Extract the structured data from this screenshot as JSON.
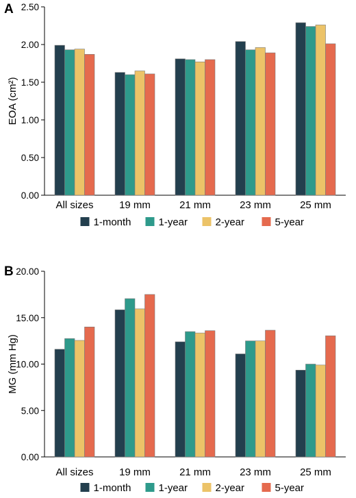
{
  "chart_data": [
    {
      "type": "bar",
      "panel": "A",
      "ylabel": "EOA (cm²)",
      "ylim": [
        0,
        2.5
      ],
      "yticks": [
        "0.00",
        "0.50",
        "1.00",
        "1.50",
        "2.00",
        "2.50"
      ],
      "categories": [
        "All sizes",
        "19 mm",
        "21 mm",
        "23 mm",
        "25 mm"
      ],
      "series": [
        {
          "name": "1-month",
          "values": [
            1.99,
            1.63,
            1.81,
            2.04,
            2.29
          ]
        },
        {
          "name": "1-year",
          "values": [
            1.93,
            1.6,
            1.8,
            1.93,
            2.24
          ]
        },
        {
          "name": "2-year",
          "values": [
            1.94,
            1.65,
            1.77,
            1.96,
            2.26
          ]
        },
        {
          "name": "5-year",
          "values": [
            1.87,
            1.61,
            1.8,
            1.89,
            2.01
          ]
        }
      ],
      "legend_position": "bottom"
    },
    {
      "type": "bar",
      "panel": "B",
      "ylabel": "MG (mm Hg)",
      "ylim": [
        0,
        20
      ],
      "yticks": [
        "0.00",
        "5.00",
        "10.00",
        "15.00",
        "20.00"
      ],
      "categories": [
        "All sizes",
        "19 mm",
        "21 mm",
        "23 mm",
        "25 mm"
      ],
      "series": [
        {
          "name": "1-month",
          "values": [
            11.6,
            15.85,
            12.4,
            11.1,
            9.35
          ]
        },
        {
          "name": "1-year",
          "values": [
            12.75,
            17.05,
            13.5,
            12.5,
            10.0
          ]
        },
        {
          "name": "2-year",
          "values": [
            12.55,
            15.95,
            13.35,
            12.5,
            9.9
          ]
        },
        {
          "name": "5-year",
          "values": [
            14.0,
            17.5,
            13.6,
            13.65,
            13.05
          ]
        }
      ],
      "legend_position": "bottom"
    }
  ],
  "colors": {
    "1-month": "#233f4e",
    "1-year": "#2e9a8b",
    "2-year": "#ecc368",
    "5-year": "#e56a4e",
    "edge": "#7a7a7a"
  }
}
